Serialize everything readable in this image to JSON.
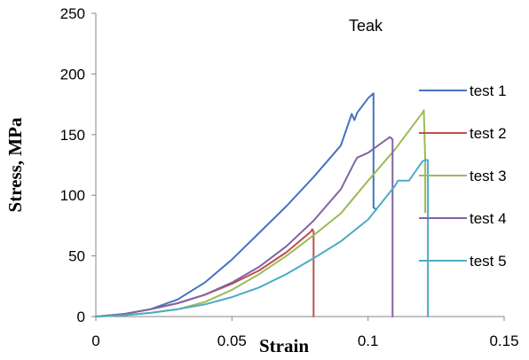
{
  "chart_data": {
    "type": "line",
    "title": "Teak",
    "xlabel": "Strain",
    "ylabel": "Stress, MPa",
    "xlim": [
      0,
      0.15
    ],
    "ylim": [
      0,
      250
    ],
    "xticks": [
      "0",
      "0.05",
      "0.1",
      "0.15"
    ],
    "xtick_values": [
      0,
      0.05,
      0.1,
      0.15
    ],
    "yticks": [
      "0",
      "50",
      "100",
      "150",
      "200",
      "250"
    ],
    "ytick_values": [
      0,
      50,
      100,
      150,
      200,
      250
    ],
    "grid": false,
    "legend_position": "right",
    "series": [
      {
        "name": "test 1",
        "color": "#4472C4",
        "x": [
          0,
          0.01,
          0.02,
          0.03,
          0.04,
          0.05,
          0.06,
          0.07,
          0.08,
          0.09,
          0.094,
          0.095,
          0.096,
          0.1,
          0.102,
          0.102,
          0.103
        ],
        "y": [
          0,
          2,
          6,
          14,
          28,
          47,
          69,
          91,
          115,
          141,
          167,
          162,
          168,
          180,
          184,
          90,
          88
        ]
      },
      {
        "name": "test 2",
        "color": "#C0504D",
        "x": [
          0,
          0.01,
          0.02,
          0.03,
          0.04,
          0.05,
          0.06,
          0.07,
          0.079,
          0.0795,
          0.08,
          0.08
        ],
        "y": [
          0,
          2,
          6,
          11,
          18,
          27,
          38,
          53,
          70,
          72,
          70,
          0
        ]
      },
      {
        "name": "test 3",
        "color": "#9BBB59",
        "x": [
          0,
          0.01,
          0.02,
          0.03,
          0.04,
          0.05,
          0.06,
          0.07,
          0.08,
          0.09,
          0.1,
          0.11,
          0.12,
          0.1205,
          0.121,
          0.121
        ],
        "y": [
          0,
          1,
          3,
          6,
          12,
          22,
          35,
          50,
          67,
          85,
          112,
          138,
          168,
          170,
          128,
          86
        ]
      },
      {
        "name": "test 4",
        "color": "#8064A2",
        "x": [
          0,
          0.01,
          0.02,
          0.03,
          0.04,
          0.05,
          0.06,
          0.07,
          0.08,
          0.09,
          0.095,
          0.096,
          0.1,
          0.108,
          0.109,
          0.109
        ],
        "y": [
          0,
          2,
          6,
          11,
          18,
          28,
          41,
          58,
          79,
          105,
          127,
          131,
          135,
          148,
          146,
          0
        ]
      },
      {
        "name": "test 5",
        "color": "#4BACC6",
        "x": [
          0,
          0.01,
          0.02,
          0.03,
          0.04,
          0.05,
          0.06,
          0.07,
          0.08,
          0.09,
          0.1,
          0.11,
          0.111,
          0.115,
          0.12,
          0.121,
          0.122,
          0.122
        ],
        "y": [
          0,
          1,
          3,
          6,
          10,
          16,
          24,
          35,
          48,
          62,
          80,
          108,
          112,
          112,
          128,
          129,
          129,
          0
        ]
      }
    ]
  }
}
